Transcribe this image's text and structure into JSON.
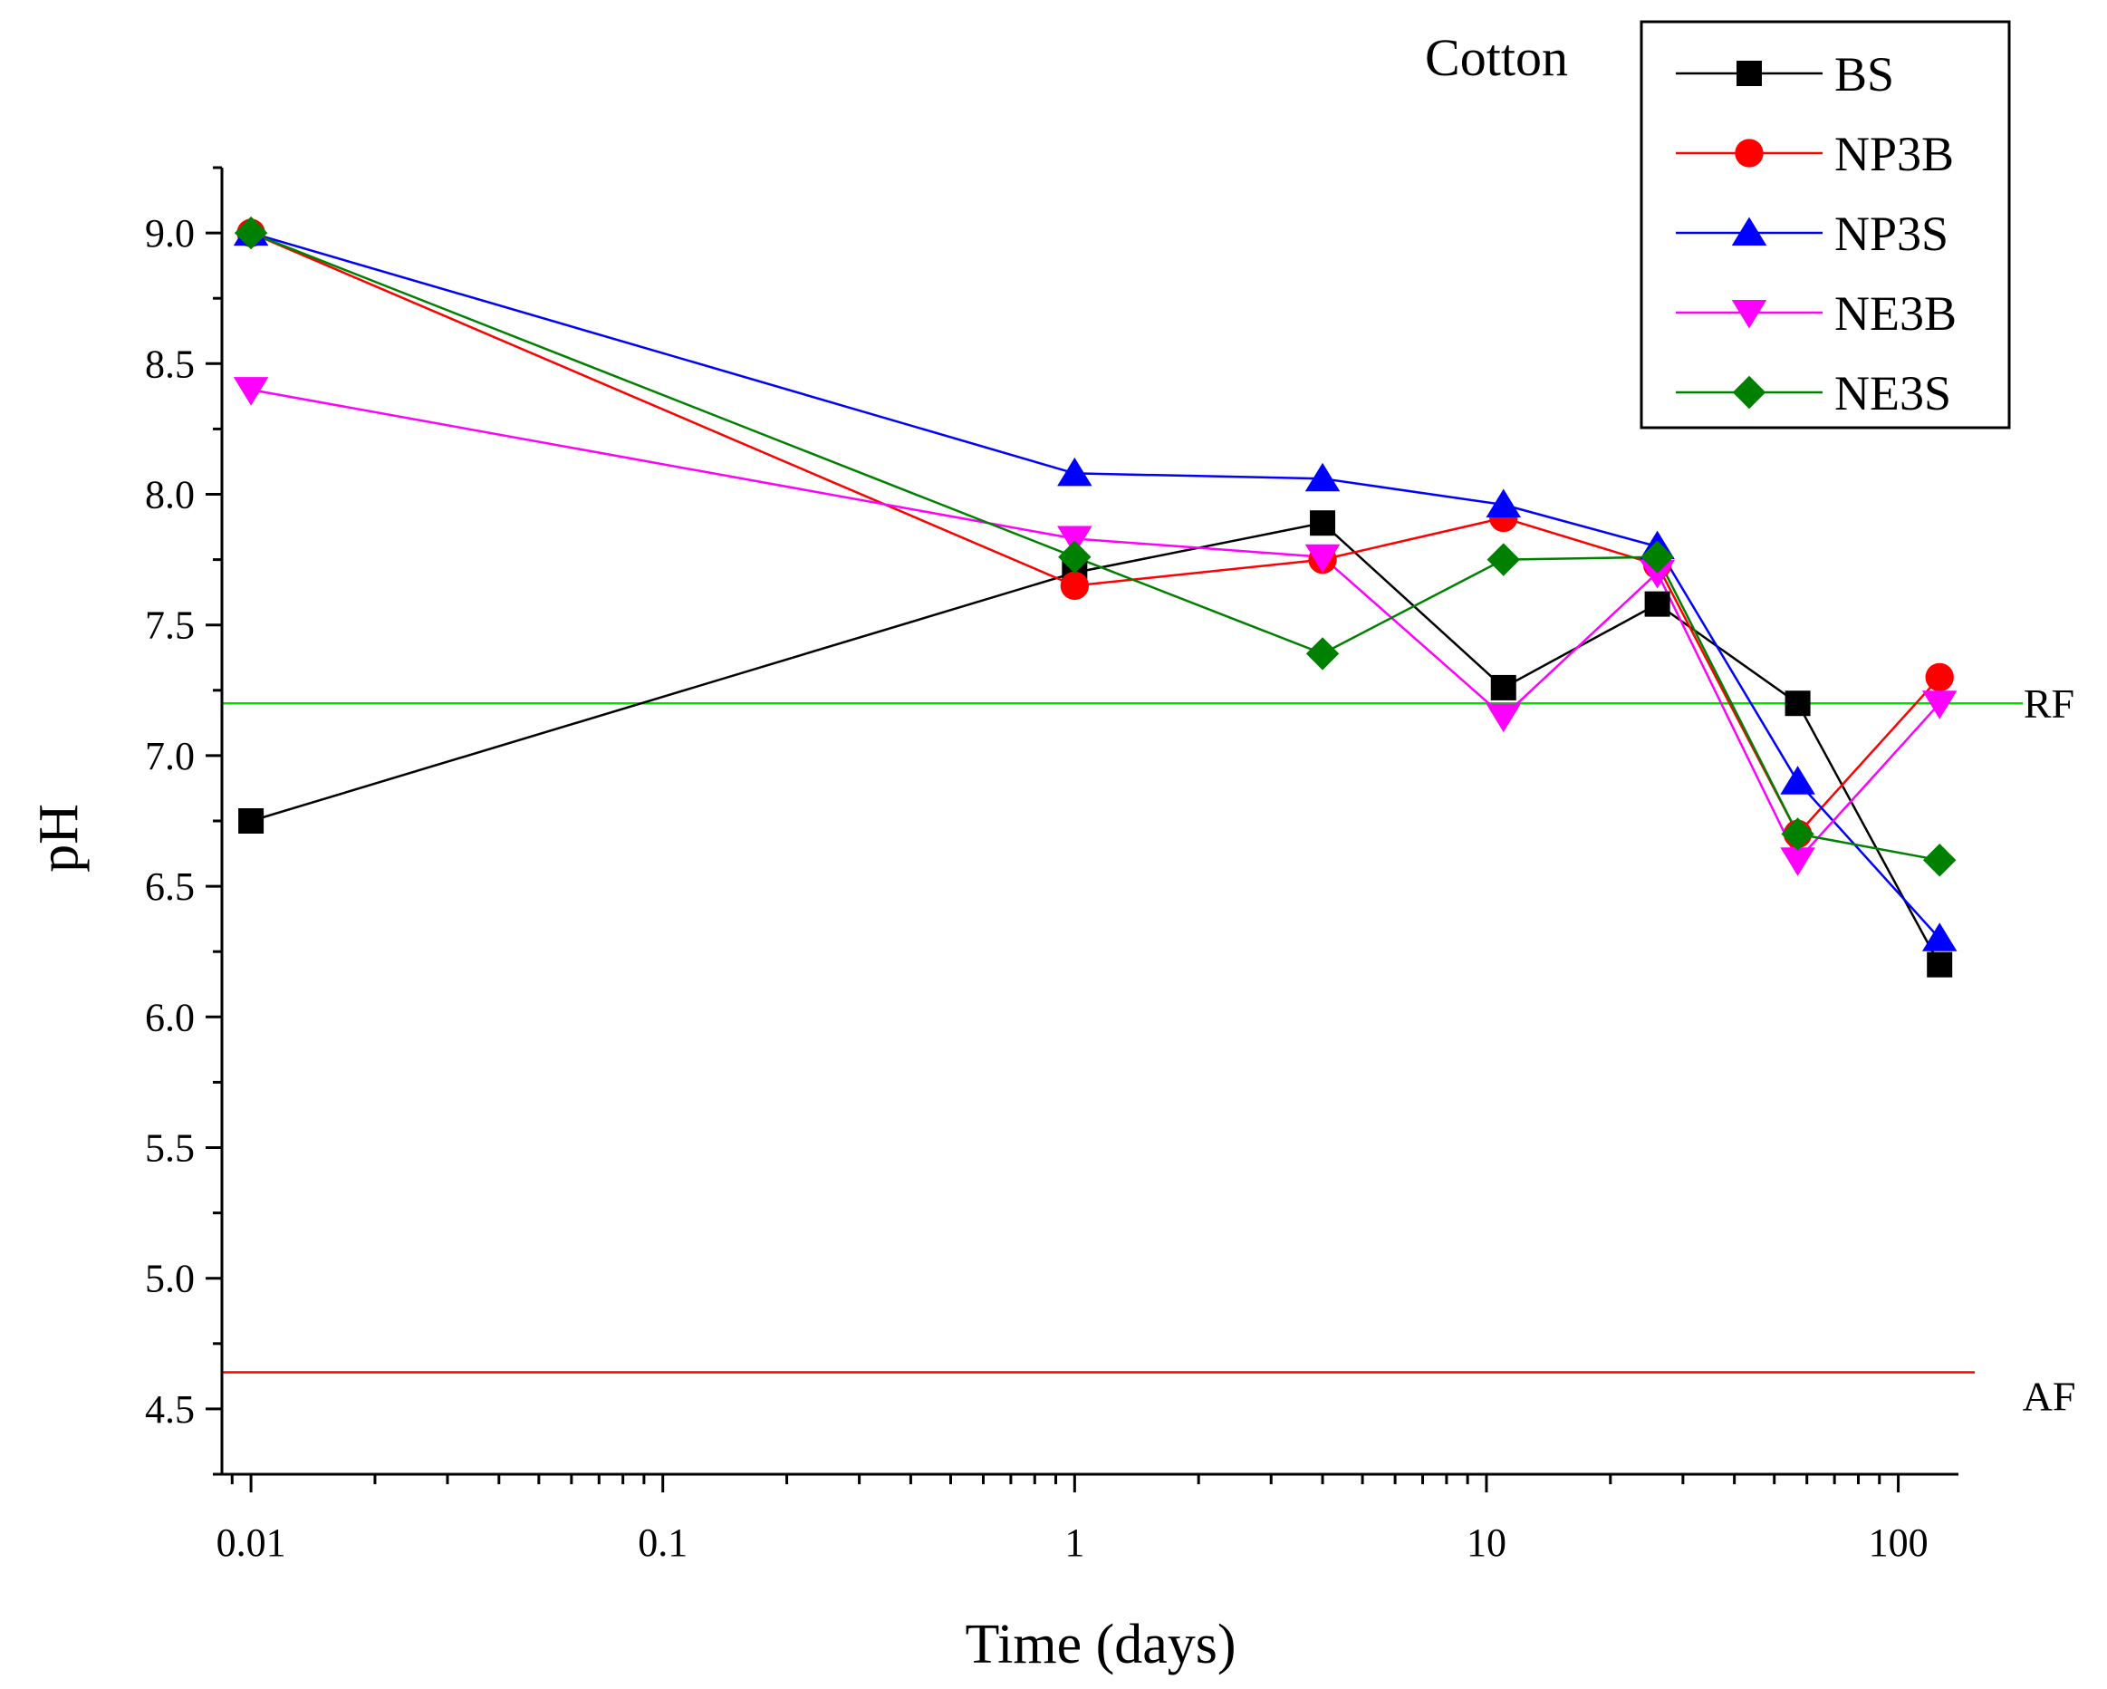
{
  "chart_data": {
    "type": "line",
    "title": "Cotton",
    "xlabel": "Time (days)",
    "ylabel": "pH",
    "xscale": "log",
    "xlim": [
      0.0085,
      140
    ],
    "ylim": [
      4.25,
      9.25
    ],
    "x_ticks": [
      0.01,
      0.1,
      1,
      10,
      100
    ],
    "x_tick_labels": [
      "0.01",
      "0.1",
      "1",
      "10",
      "100"
    ],
    "y_ticks": [
      4.5,
      5.0,
      5.5,
      6.0,
      6.5,
      7.0,
      7.5,
      8.0,
      8.5,
      9.0
    ],
    "y_tick_labels": [
      "4.5",
      "5.0",
      "5.5",
      "6.0",
      "6.5",
      "7.0",
      "7.5",
      "8.0",
      "8.5",
      "9.0"
    ],
    "legend_position": "top-right",
    "series": [
      {
        "name": "BS",
        "color": "#000000",
        "marker": "square",
        "x": [
          0.01,
          1,
          4,
          11,
          26,
          57,
          126
        ],
        "y": [
          6.75,
          7.7,
          7.89,
          7.26,
          7.58,
          7.2,
          6.2
        ]
      },
      {
        "name": "NP3B",
        "color": "#ff0000",
        "marker": "circle",
        "x": [
          0.01,
          1,
          4,
          11,
          26,
          57,
          126
        ],
        "y": [
          9.0,
          7.65,
          7.75,
          7.91,
          7.73,
          6.7,
          7.3
        ]
      },
      {
        "name": "NP3S",
        "color": "#0000ff",
        "marker": "triangle-up",
        "x": [
          0.01,
          1,
          4,
          11,
          26,
          57,
          126
        ],
        "y": [
          9.0,
          8.08,
          8.06,
          7.96,
          7.8,
          6.9,
          6.3
        ]
      },
      {
        "name": "NE3B",
        "color": "#ff00ff",
        "marker": "triangle-down",
        "x": [
          0.01,
          1,
          4,
          11,
          26,
          57,
          126
        ],
        "y": [
          8.4,
          7.83,
          7.76,
          7.15,
          7.7,
          6.6,
          7.2
        ]
      },
      {
        "name": "NE3S",
        "color": "#008000",
        "marker": "diamond",
        "x": [
          0.01,
          1,
          4,
          11,
          26,
          57,
          126
        ],
        "y": [
          9.0,
          7.76,
          7.39,
          7.75,
          7.76,
          6.7,
          6.6
        ]
      }
    ],
    "reference_lines": [
      {
        "label": "RF",
        "y": 7.2,
        "color": "#00dd00"
      },
      {
        "label": "AF",
        "y": 4.64,
        "color": "#ff0000"
      }
    ]
  }
}
